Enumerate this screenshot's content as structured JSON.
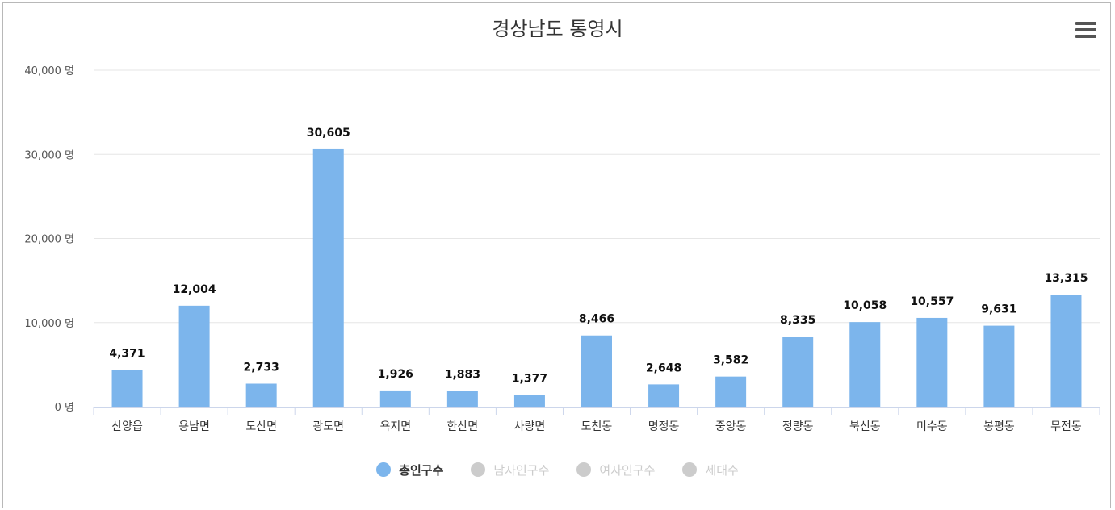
{
  "chart_data": {
    "type": "bar",
    "title": "경상남도 통영시",
    "categories": [
      "산양읍",
      "용남면",
      "도산면",
      "광도면",
      "욕지면",
      "한산면",
      "사량면",
      "도천동",
      "명정동",
      "중앙동",
      "정량동",
      "북신동",
      "미수동",
      "봉평동",
      "무전동"
    ],
    "series": [
      {
        "name": "총인구수",
        "values": [
          4371,
          12004,
          2733,
          30605,
          1926,
          1883,
          1377,
          8466,
          2648,
          3582,
          8335,
          10058,
          10557,
          9631,
          13315
        ],
        "visible": true
      }
    ],
    "data_labels": [
      "4,371",
      "12,004",
      "2,733",
      "30,605",
      "1,926",
      "1,883",
      "1,377",
      "8,466",
      "2,648",
      "3,582",
      "8,335",
      "10,058",
      "10,557",
      "9,631",
      "13,315"
    ],
    "ylim": [
      0,
      40000
    ],
    "y_ticks": [
      0,
      10000,
      20000,
      30000,
      40000
    ],
    "y_tick_labels": [
      "0 명",
      "10,000 명",
      "20,000 명",
      "30,000 명",
      "40,000 명"
    ],
    "grid": true,
    "legend_position": "bottom-center"
  },
  "legend": [
    {
      "label": "총인구수",
      "active": true,
      "color": "#7cb5ec"
    },
    {
      "label": "남자인구수",
      "active": false,
      "color": "#cccccc"
    },
    {
      "label": "여자인구수",
      "active": false,
      "color": "#cccccc"
    },
    {
      "label": "세대수",
      "active": false,
      "color": "#cccccc"
    }
  ],
  "colors": {
    "bar": "#7cb5ec",
    "grid": "#e6e6e6",
    "axis": "#ccd6eb",
    "legend_inactive_text": "#cccccc",
    "legend_active_text": "#333333"
  },
  "menu_icon": "hamburger-icon"
}
